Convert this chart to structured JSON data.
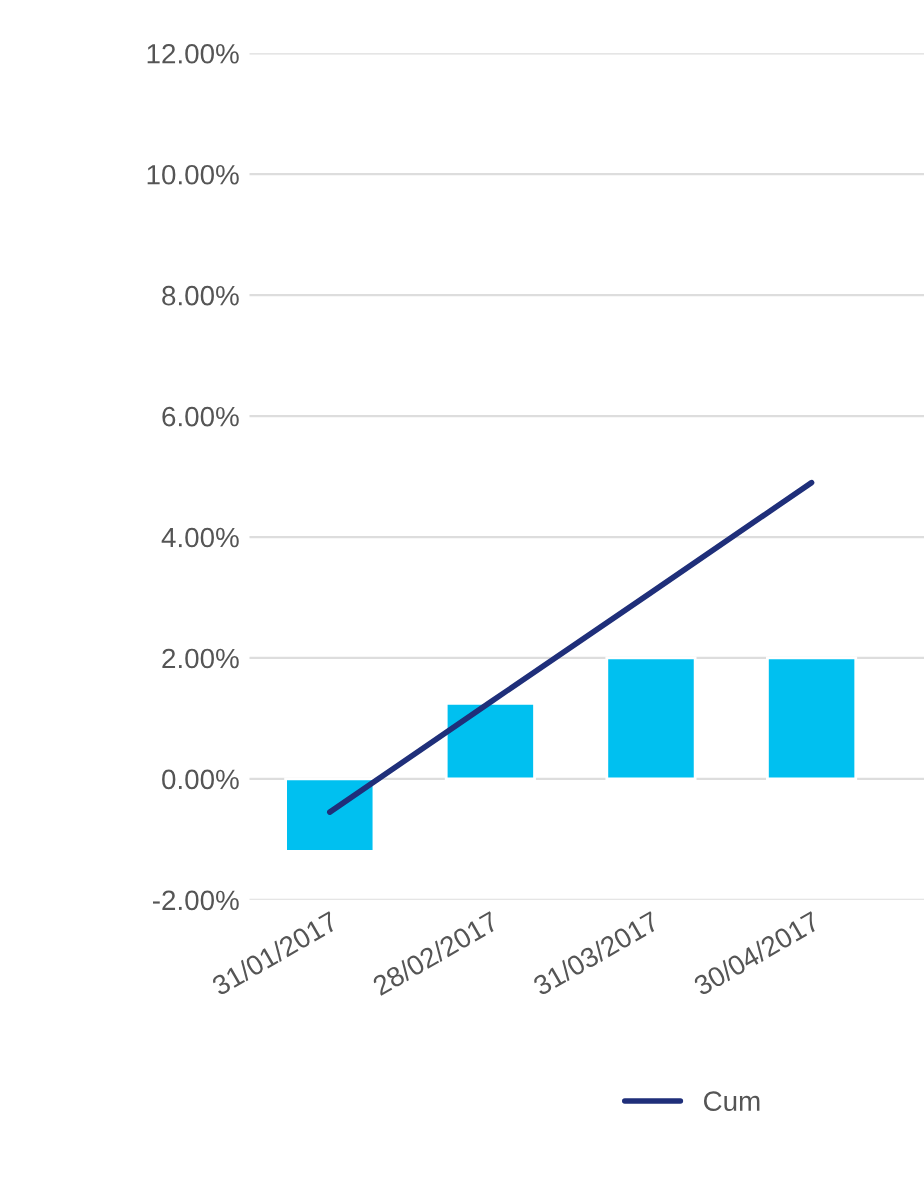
{
  "chart_data": {
    "type": "bar",
    "categories": [
      "31/01/2017",
      "28/02/2017",
      "31/03/2017",
      "30/04/2017"
    ],
    "series": [
      {
        "color": "#00c0f0",
        "values": [
          -1.2,
          1.25,
          2.0,
          2.0
        ]
      },
      {
        "type": "line",
        "name": "Cum",
        "color": "#1f2f7a",
        "values": [
          -0.55,
          1.27,
          3.08,
          4.9
        ]
      }
    ],
    "ylim": [
      -2,
      12
    ],
    "yticks": [
      {
        "value": -2,
        "label": "-2.00%"
      },
      {
        "value": 0,
        "label": "0.00%"
      },
      {
        "value": 2,
        "label": "2.00%"
      },
      {
        "value": 4,
        "label": "4.00%"
      },
      {
        "value": 6,
        "label": "6.00%"
      },
      {
        "value": 8,
        "label": "8.00%"
      },
      {
        "value": 10,
        "label": "10.00%"
      },
      {
        "value": 12,
        "label": "12.00%"
      }
    ],
    "grid": "y",
    "legend": "bottom"
  }
}
